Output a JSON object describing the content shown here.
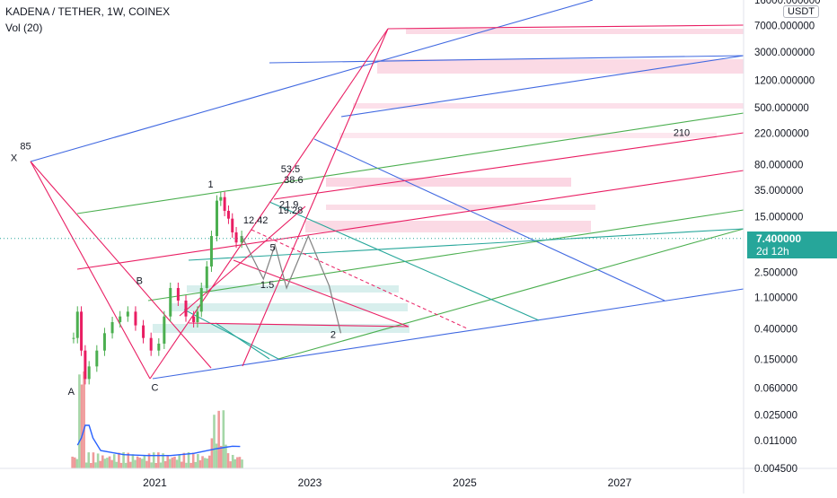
{
  "header": {
    "symbol_line": "KADENA / TETHER, 1W, COINEX",
    "indicator_line": "Vol (20)"
  },
  "price_axis": {
    "currency": "USDT",
    "current_price": "7.400000",
    "countdown": "2d 12h"
  },
  "colors": {
    "pink": "#e91e63",
    "blue": "#4169e1",
    "green": "#4caf50",
    "teal": "#26a69a",
    "grey": "#808080",
    "zone_pink": "#f8bbd0",
    "zone_green": "#b2dfdb",
    "vol_green": "#a5d6a7",
    "vol_red": "#ef9a9a",
    "vol_ma": "#2962ff"
  },
  "chart_data": {
    "type": "line",
    "title": "KADENA / TETHER, 1W, COINEX",
    "y_scale": "log",
    "ylim": [
      0.0045,
      16000
    ],
    "xlim": [
      2019.0,
      2028.6
    ],
    "y_ticks": [
      {
        "value": 16000,
        "label": "16000.000000"
      },
      {
        "value": 7000,
        "label": "7000.000000"
      },
      {
        "value": 3000,
        "label": "3000.000000"
      },
      {
        "value": 1200,
        "label": "1200.000000"
      },
      {
        "value": 500,
        "label": "500.000000"
      },
      {
        "value": 220,
        "label": "220.000000"
      },
      {
        "value": 80,
        "label": "80.000000"
      },
      {
        "value": 35,
        "label": "35.000000"
      },
      {
        "value": 15,
        "label": "15.000000"
      },
      {
        "value": 2.5,
        "label": "2.500000"
      },
      {
        "value": 1.1,
        "label": "1.100000"
      },
      {
        "value": 0.4,
        "label": "0.400000"
      },
      {
        "value": 0.15,
        "label": "0.150000"
      },
      {
        "value": 0.06,
        "label": "0.060000"
      },
      {
        "value": 0.025,
        "label": "0.025000"
      },
      {
        "value": 0.011,
        "label": "0.011000"
      },
      {
        "value": 0.0045,
        "label": "0.004500"
      }
    ],
    "x_ticks": [
      {
        "value": 2021.0,
        "label": "2021"
      },
      {
        "value": 2023.0,
        "label": "2023"
      },
      {
        "value": 2025.0,
        "label": "2025"
      },
      {
        "value": 2027.0,
        "label": "2027"
      }
    ],
    "price_path": [
      [
        2019.95,
        0.3
      ],
      [
        2020.0,
        0.7
      ],
      [
        2020.05,
        0.2
      ],
      [
        2020.1,
        0.08
      ],
      [
        2020.15,
        0.12
      ],
      [
        2020.25,
        0.2
      ],
      [
        2020.35,
        0.35
      ],
      [
        2020.45,
        0.5
      ],
      [
        2020.55,
        0.6
      ],
      [
        2020.65,
        0.7
      ],
      [
        2020.75,
        0.45
      ],
      [
        2020.85,
        0.3
      ],
      [
        2020.95,
        0.2
      ],
      [
        2021.05,
        0.25
      ],
      [
        2021.12,
        0.6
      ],
      [
        2021.2,
        1.5
      ],
      [
        2021.3,
        1.0
      ],
      [
        2021.4,
        0.6
      ],
      [
        2021.5,
        0.5
      ],
      [
        2021.55,
        0.7
      ],
      [
        2021.6,
        1.5
      ],
      [
        2021.67,
        3.0
      ],
      [
        2021.73,
        8.0
      ],
      [
        2021.8,
        25.0
      ],
      [
        2021.85,
        28.0
      ],
      [
        2021.9,
        18.0
      ],
      [
        2021.95,
        14.0
      ],
      [
        2022.0,
        9.0
      ],
      [
        2022.05,
        6.5
      ],
      [
        2022.12,
        8.0
      ]
    ],
    "projection_path": [
      [
        2022.12,
        8.0
      ],
      [
        2022.4,
        2.0
      ],
      [
        2022.55,
        6.0
      ],
      [
        2022.7,
        1.5
      ],
      [
        2022.98,
        8.0
      ],
      [
        2023.25,
        1.6
      ],
      [
        2023.4,
        0.35
      ]
    ],
    "volume_ma": [
      [
        2020.0,
        0.0095
      ],
      [
        2020.05,
        0.012
      ],
      [
        2020.1,
        0.018
      ],
      [
        2020.15,
        0.018
      ],
      [
        2020.2,
        0.012
      ],
      [
        2020.3,
        0.008
      ],
      [
        2020.6,
        0.007
      ],
      [
        2020.9,
        0.0068
      ],
      [
        2021.2,
        0.0068
      ],
      [
        2021.5,
        0.0073
      ],
      [
        2021.8,
        0.0085
      ],
      [
        2022.0,
        0.0092
      ],
      [
        2022.1,
        0.0091
      ]
    ],
    "annotations": [
      {
        "text": "X",
        "x": 2019.18,
        "y": 90
      },
      {
        "text": "85",
        "x": 2019.33,
        "y": 130
      },
      {
        "text": "A",
        "x": 2019.92,
        "y": 0.048
      },
      {
        "text": "B",
        "x": 2020.8,
        "y": 1.7
      },
      {
        "text": "C",
        "x": 2021.0,
        "y": 0.055
      },
      {
        "text": "1",
        "x": 2021.72,
        "y": 38
      },
      {
        "text": "2",
        "x": 2023.3,
        "y": 0.3
      },
      {
        "text": "12.42",
        "x": 2022.3,
        "y": 12
      },
      {
        "text": "5",
        "x": 2022.52,
        "y": 5
      },
      {
        "text": "1.5",
        "x": 2022.45,
        "y": 1.5
      },
      {
        "text": "53.5",
        "x": 2022.75,
        "y": 62
      },
      {
        "text": "38.6",
        "x": 2022.79,
        "y": 44
      },
      {
        "text": "21.9",
        "x": 2022.73,
        "y": 20
      },
      {
        "text": "19.28",
        "x": 2022.75,
        "y": 16.5
      },
      {
        "text": "210",
        "x": 2027.8,
        "y": 200
      }
    ]
  }
}
